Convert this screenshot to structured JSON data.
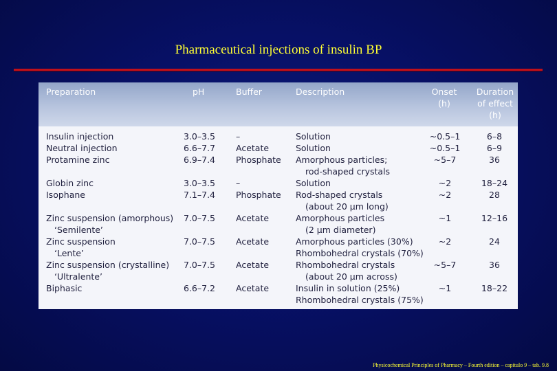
{
  "title": "Pharmaceutical injections of insulin BP",
  "footer": "Physicochemical Principles of Pharmacy – Fourth edition – capitulo 9 – tab. 9.8",
  "table": {
    "headers": {
      "preparation": "Preparation",
      "ph": "pH",
      "buffer": "Buffer",
      "description": "Description",
      "onset_1": "Onset",
      "onset_2": "(h)",
      "duration_1": "Duration",
      "duration_2": "of effect",
      "duration_3": "(h)"
    },
    "rows": [
      {
        "prep": [
          "Insulin injection"
        ],
        "ph": "3.0–3.5",
        "buffer": "–",
        "desc": [
          "Solution"
        ],
        "onset": "~0.5–1",
        "dur": "6–8"
      },
      {
        "prep": [
          "Neutral injection"
        ],
        "ph": "6.6–7.7",
        "buffer": "Acetate",
        "desc": [
          "Solution"
        ],
        "onset": "~0.5–1",
        "dur": "6–9"
      },
      {
        "prep": [
          "Protamine zinc"
        ],
        "ph": "6.9–7.4",
        "buffer": "Phosphate",
        "desc": [
          "Amorphous particles;",
          "rod-shaped crystals"
        ],
        "onset": "~5–7",
        "dur": "36"
      },
      {
        "prep": [
          "Globin zinc"
        ],
        "ph": "3.0–3.5",
        "buffer": "–",
        "desc": [
          "Solution"
        ],
        "onset": "~2",
        "dur": "18–24"
      },
      {
        "prep": [
          "Isophane"
        ],
        "ph": "7.1–7.4",
        "buffer": "Phosphate",
        "desc": [
          "Rod-shaped crystals",
          "(about 20 µm long)"
        ],
        "onset": "~2",
        "dur": "28"
      },
      {
        "prep": [
          "Zinc suspension (amorphous)",
          "‘Semilente’"
        ],
        "ph": "7.0–7.5",
        "buffer": "Acetate",
        "desc": [
          "Amorphous particles",
          "(2 µm diameter)"
        ],
        "onset": "~1",
        "dur": "12–16"
      },
      {
        "prep": [
          "Zinc suspension",
          "‘Lente’"
        ],
        "ph": "7.0–7.5",
        "buffer": "Acetate",
        "desc": [
          "Amorphous particles (30%)",
          "Rhombohedral crystals (70%)"
        ],
        "onset": "~2",
        "dur": "24"
      },
      {
        "prep": [
          "Zinc suspension (crystalline)",
          "‘Ultralente’"
        ],
        "ph": "7.0–7.5",
        "buffer": "Acetate",
        "desc": [
          "Rhombohedral crystals",
          "(about 20 µm across)"
        ],
        "onset": "~5–7",
        "dur": "36"
      },
      {
        "prep": [
          "Biphasic"
        ],
        "ph": "6.6–7.2",
        "buffer": "Acetate",
        "desc": [
          "Insulin in solution (25%)",
          "Rhombohedral crystals (75%)"
        ],
        "onset": "~1",
        "dur": "18–22"
      }
    ]
  }
}
